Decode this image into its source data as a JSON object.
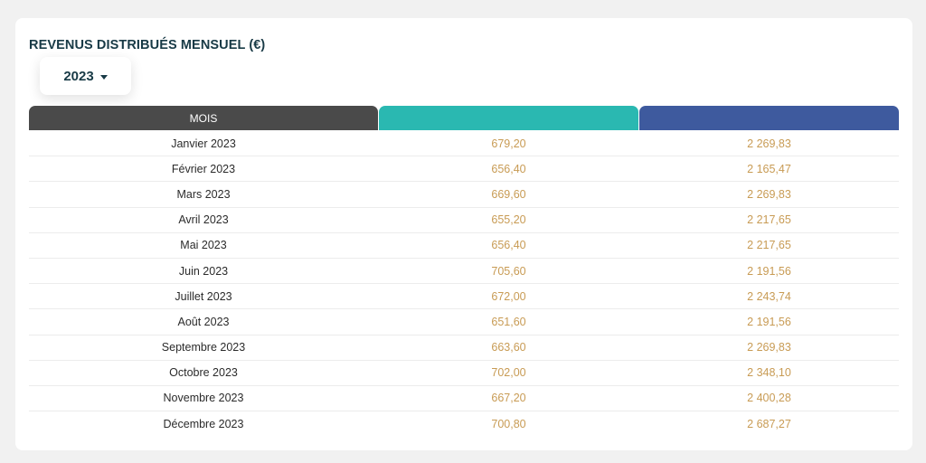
{
  "title": "REVENUS DISTRIBUÉS MENSUEL (€)",
  "year_selector": {
    "value": "2023",
    "icon": "caret-down-icon"
  },
  "table": {
    "headers": [
      "MOIS",
      "",
      ""
    ],
    "header_colors": [
      "#4a4a4a",
      "#2ab8b1",
      "#3e5a9e"
    ],
    "rows": [
      {
        "mois": "Janvier 2023",
        "v1": "679,20",
        "v2": "2 269,83"
      },
      {
        "mois": "Février 2023",
        "v1": "656,40",
        "v2": "2 165,47"
      },
      {
        "mois": "Mars 2023",
        "v1": "669,60",
        "v2": "2 269,83"
      },
      {
        "mois": "Avril 2023",
        "v1": "655,20",
        "v2": "2 217,65"
      },
      {
        "mois": "Mai 2023",
        "v1": "656,40",
        "v2": "2 217,65"
      },
      {
        "mois": "Juin 2023",
        "v1": "705,60",
        "v2": "2 191,56"
      },
      {
        "mois": "Juillet 2023",
        "v1": "672,00",
        "v2": "2 243,74"
      },
      {
        "mois": "Août 2023",
        "v1": "651,60",
        "v2": "2 191,56"
      },
      {
        "mois": "Septembre 2023",
        "v1": "663,60",
        "v2": "2 269,83"
      },
      {
        "mois": "Octobre 2023",
        "v1": "702,00",
        "v2": "2 348,10"
      },
      {
        "mois": "Novembre 2023",
        "v1": "667,20",
        "v2": "2 400,28"
      },
      {
        "mois": "Décembre 2023",
        "v1": "700,80",
        "v2": "2 687,27"
      }
    ]
  },
  "colors": {
    "value_text": "#c89b54",
    "title_text": "#183a46"
  }
}
